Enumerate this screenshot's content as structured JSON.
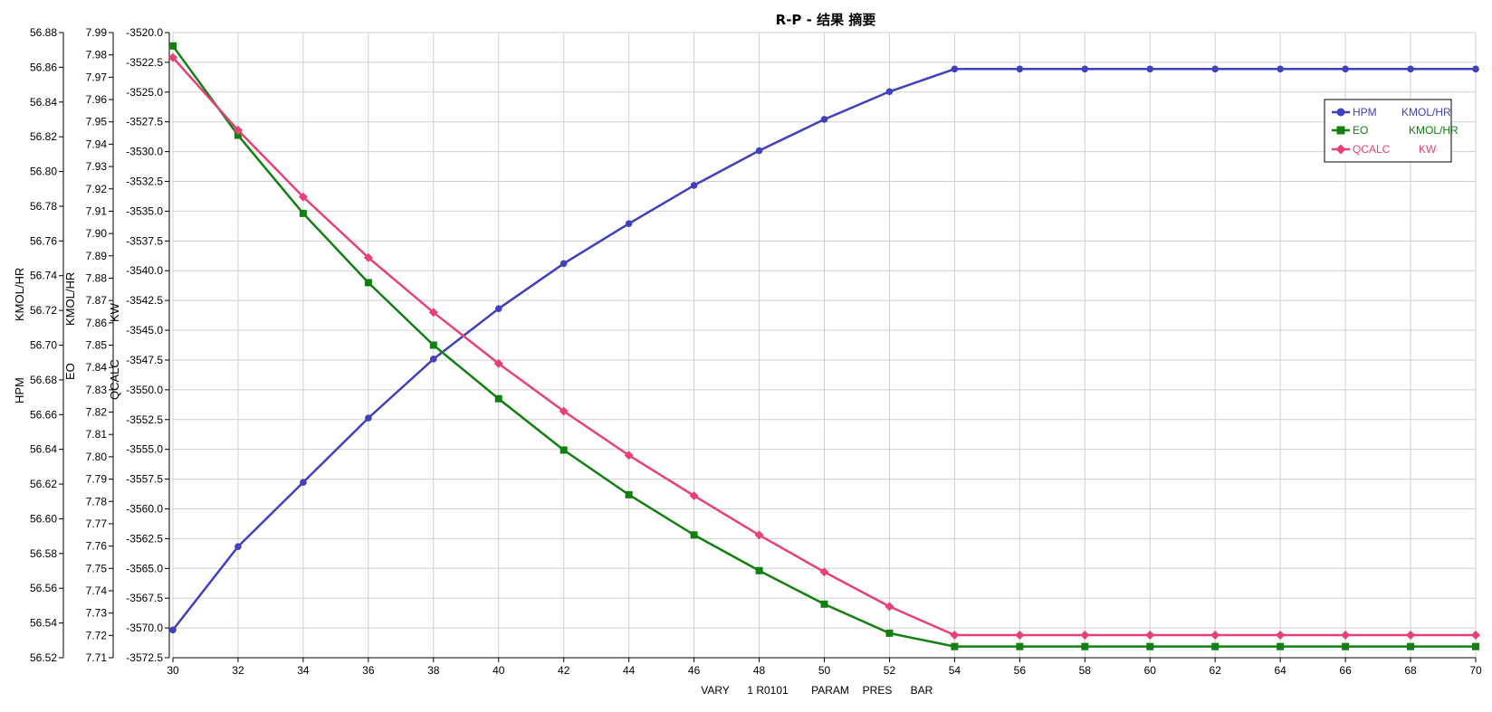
{
  "chart_data": {
    "type": "line",
    "title": "R-P - 结果 摘要",
    "xlabel_parts": [
      "VARY",
      "1 R0101",
      "PARAM",
      "PRES",
      "BAR"
    ],
    "x": [
      30,
      32,
      34,
      36,
      38,
      40,
      42,
      44,
      46,
      48,
      50,
      52,
      54,
      56,
      58,
      60,
      62,
      64,
      66,
      68,
      70
    ],
    "xlim": [
      30,
      70
    ],
    "xticks": [
      "30",
      "32",
      "34",
      "36",
      "38",
      "40",
      "42",
      "44",
      "46",
      "48",
      "50",
      "52",
      "54",
      "56",
      "58",
      "60",
      "62",
      "64",
      "66",
      "68",
      "70"
    ],
    "grid": true,
    "legend_position": "top-right",
    "axes": [
      {
        "name": "HPM",
        "unit": "KMOL/HR",
        "ylim": [
          56.52,
          56.88
        ],
        "ticks": [
          "56.52",
          "56.54",
          "56.56",
          "56.58",
          "56.60",
          "56.62",
          "56.64",
          "56.66",
          "56.68",
          "56.70",
          "56.72",
          "56.74",
          "56.76",
          "56.78",
          "56.80",
          "56.82",
          "56.84",
          "56.86",
          "56.88"
        ]
      },
      {
        "name": "EO",
        "unit": "KMOL/HR",
        "ylim": [
          7.71,
          7.99
        ],
        "ticks": [
          "7.71",
          "7.72",
          "7.73",
          "7.74",
          "7.75",
          "7.76",
          "7.77",
          "7.78",
          "7.79",
          "7.80",
          "7.81",
          "7.82",
          "7.83",
          "7.84",
          "7.85",
          "7.86",
          "7.87",
          "7.88",
          "7.89",
          "7.90",
          "7.91",
          "7.92",
          "7.93",
          "7.94",
          "7.95",
          "7.96",
          "7.97",
          "7.98",
          "7.99"
        ]
      },
      {
        "name": "QCALC",
        "unit": "KW",
        "ylim": [
          -3572.5,
          -3520.0
        ],
        "ticks": [
          "-3572.5",
          "-3570.0",
          "-3567.5",
          "-3565.0",
          "-3562.5",
          "-3560.0",
          "-3557.5",
          "-3555.0",
          "-3552.5",
          "-3550.0",
          "-3547.5",
          "-3545.0",
          "-3542.5",
          "-3540.0",
          "-3537.5",
          "-3535.0",
          "-3532.5",
          "-3530.0",
          "-3527.5",
          "-3525.0",
          "-3522.5",
          "-3520.0"
        ]
      }
    ],
    "series": [
      {
        "name": "HPM",
        "unit": "KMOL/HR",
        "axis": 0,
        "color": "#4040c0",
        "marker": "circle",
        "values": [
          56.536,
          56.584,
          56.621,
          56.658,
          56.692,
          56.721,
          56.747,
          56.77,
          56.792,
          56.812,
          56.83,
          56.846,
          56.859,
          56.859,
          56.859,
          56.859,
          56.859,
          56.859,
          56.859,
          56.859,
          56.859
        ]
      },
      {
        "name": "EO",
        "unit": "KMOL/HR",
        "axis": 1,
        "color": "#108010",
        "marker": "square",
        "values": [
          7.984,
          7.944,
          7.909,
          7.878,
          7.85,
          7.826,
          7.803,
          7.783,
          7.765,
          7.749,
          7.734,
          7.721,
          7.715,
          7.715,
          7.715,
          7.715,
          7.715,
          7.715,
          7.715,
          7.715,
          7.715
        ]
      },
      {
        "name": "QCALC",
        "unit": "KW",
        "axis": 2,
        "color": "#e84078",
        "marker": "diamond",
        "values": [
          -3522.1,
          -3528.2,
          -3533.8,
          -3538.9,
          -3543.5,
          -3547.8,
          -3551.8,
          -3555.5,
          -3558.9,
          -3562.2,
          -3565.3,
          -3568.2,
          -3570.6,
          -3570.6,
          -3570.6,
          -3570.6,
          -3570.6,
          -3570.6,
          -3570.6,
          -3570.6,
          -3570.6
        ]
      }
    ]
  }
}
